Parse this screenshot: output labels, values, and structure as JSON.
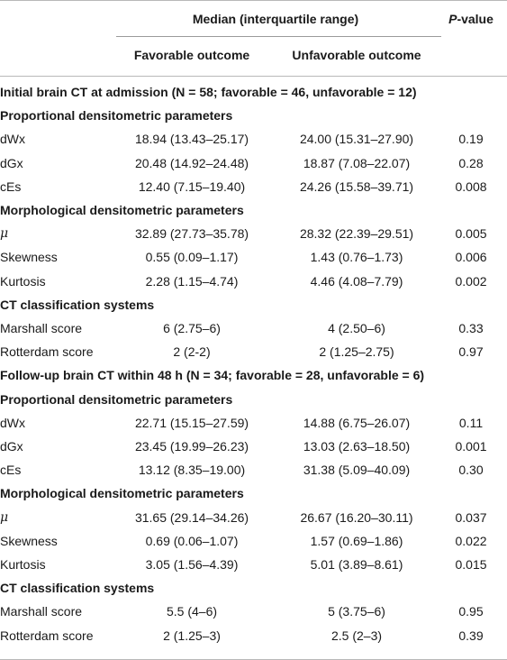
{
  "header": {
    "median_label": "Median (interquartile range)",
    "pvalue_p": "P",
    "pvalue_rest": "-value",
    "favorable": "Favorable outcome",
    "unfavorable": "Unfavorable outcome"
  },
  "sections": [
    {
      "title": "Initial brain CT at admission (N = 58; favorable = 46, unfavorable = 12)",
      "groups": [
        {
          "title": "Proportional densitometric parameters",
          "rows": [
            {
              "label": "dWx",
              "fav": "18.94 (13.43–25.17)",
              "unfav": "24.00 (15.31–27.90)",
              "p": "0.19"
            },
            {
              "label": "dGx",
              "fav": "20.48 (14.92–24.48)",
              "unfav": "18.87 (7.08–22.07)",
              "p": "0.28"
            },
            {
              "label": "cEs",
              "fav": "12.40 (7.15–19.40)",
              "unfav": "24.26 (15.58–39.71)",
              "p": "0.008"
            }
          ]
        },
        {
          "title": "Morphological densitometric parameters",
          "rows": [
            {
              "label": "μ",
              "fav": "32.89 (27.73–35.78)",
              "unfav": "28.32 (22.39–29.51)",
              "p": "0.005"
            },
            {
              "label": "Skewness",
              "fav": "0.55 (0.09–1.17)",
              "unfav": "1.43 (0.76–1.73)",
              "p": "0.006"
            },
            {
              "label": "Kurtosis",
              "fav": "2.28 (1.15–4.74)",
              "unfav": "4.46 (4.08–7.79)",
              "p": "0.002"
            }
          ]
        },
        {
          "title": "CT classification systems",
          "rows": [
            {
              "label": "Marshall score",
              "fav": "6 (2.75–6)",
              "unfav": "4 (2.50–6)",
              "p": "0.33"
            },
            {
              "label": "Rotterdam score",
              "fav": "2 (2-2)",
              "unfav": "2 (1.25–2.75)",
              "p": "0.97"
            }
          ]
        }
      ]
    },
    {
      "title": "Follow-up brain CT within 48 h (N = 34; favorable = 28, unfavorable = 6)",
      "groups": [
        {
          "title": "Proportional densitometric parameters",
          "rows": [
            {
              "label": "dWx",
              "fav": "22.71 (15.15–27.59)",
              "unfav": "14.88 (6.75–26.07)",
              "p": "0.11"
            },
            {
              "label": "dGx",
              "fav": "23.45 (19.99–26.23)",
              "unfav": "13.03 (2.63–18.50)",
              "p": "0.001"
            },
            {
              "label": "cEs",
              "fav": "13.12 (8.35–19.00)",
              "unfav": "31.38 (5.09–40.09)",
              "p": "0.30"
            }
          ]
        },
        {
          "title": "Morphological densitometric parameters",
          "rows": [
            {
              "label": "μ",
              "fav": "31.65 (29.14–34.26)",
              "unfav": "26.67 (16.20–30.11)",
              "p": "0.037"
            },
            {
              "label": "Skewness",
              "fav": "0.69 (0.06–1.07)",
              "unfav": "1.57 (0.69–1.86)",
              "p": "0.022"
            },
            {
              "label": "Kurtosis",
              "fav": "3.05 (1.56–4.39)",
              "unfav": "5.01 (3.89–8.61)",
              "p": "0.015"
            }
          ]
        },
        {
          "title": "CT classification systems",
          "rows": [
            {
              "label": "Marshall score",
              "fav": "5.5 (4–6)",
              "unfav": "5 (3.75–6)",
              "p": "0.95"
            },
            {
              "label": "Rotterdam score",
              "fav": "2 (1.25–3)",
              "unfav": "2.5 (2–3)",
              "p": "0.39"
            }
          ]
        }
      ]
    }
  ]
}
